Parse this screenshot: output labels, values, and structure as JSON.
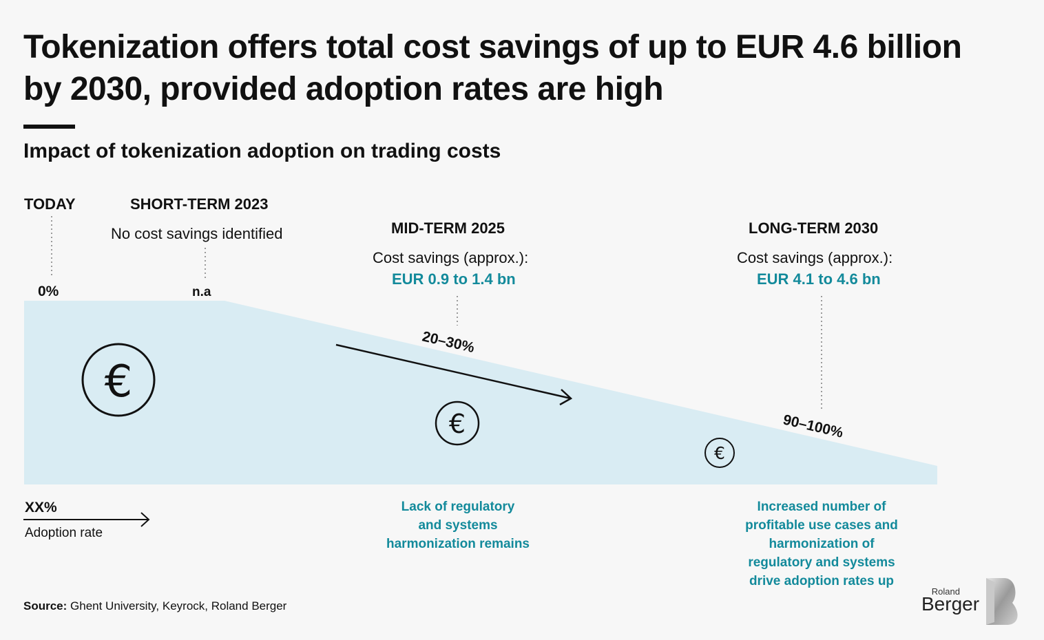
{
  "title_line1": "Tokenization offers total cost savings of up to EUR 4.6 billion",
  "title_line2": "by 2030, provided adoption rates are high",
  "subtitle": "Impact of tokenization adoption on trading costs",
  "stages": {
    "today": {
      "label": "TODAY",
      "rate": "0%"
    },
    "short": {
      "label": "SHORT-TERM 2023",
      "text": "No cost savings identified",
      "rate": "n.a"
    },
    "mid": {
      "label": "MID-TERM 2025",
      "text": "Cost savings (approx.):",
      "savings": "EUR 0.9 to 1.4 bn",
      "rate": "20–30%",
      "note_lines": [
        "Lack of regulatory",
        "and systems",
        "harmonization remains"
      ]
    },
    "long": {
      "label": "LONG-TERM 2030",
      "text": "Cost savings (approx.):",
      "savings": "EUR 4.1 to 4.6 bn",
      "rate": "90–100%",
      "note_lines": [
        "Increased number of",
        "profitable use cases and",
        "harmonization of",
        "regulatory and systems",
        "drive adoption rates up"
      ]
    }
  },
  "legend": {
    "symbol": "XX%",
    "label": "Adoption rate"
  },
  "source_label": "Source:",
  "source_text": " Ghent University, Keyrock, Roland Berger",
  "icons": [
    "euro-icon",
    "arrow-right-icon"
  ],
  "logo": {
    "small": "Roland",
    "big": "Berger"
  },
  "colors": {
    "area": "#d9ecf3",
    "accent": "#138a9b",
    "text": "#111111"
  },
  "chart_data": {
    "type": "area",
    "categories": [
      "TODAY",
      "SHORT-TERM 2023",
      "MID-TERM 2025",
      "LONG-TERM 2030"
    ],
    "adoption_rate": [
      "0%",
      "n.a",
      "20–30%",
      "90–100%"
    ],
    "cost_savings": [
      "",
      "No cost savings identified",
      "EUR 0.9 to 1.4 bn",
      "EUR 4.1 to 4.6 bn"
    ]
  }
}
